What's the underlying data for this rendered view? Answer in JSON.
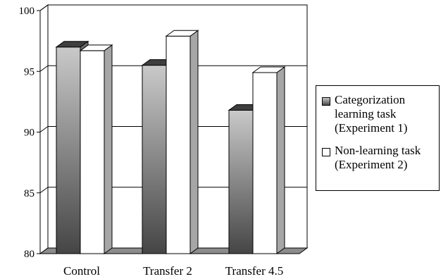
{
  "chart_data": {
    "type": "bar",
    "categories": [
      "Control",
      "Transfer 2",
      "Transfer 4.5"
    ],
    "series": [
      {
        "name": "Categorization learning task (Experiment 1)",
        "values": [
          97.0,
          95.5,
          91.8
        ]
      },
      {
        "name": "Non-learning task (Experiment 2)",
        "values": [
          96.7,
          97.9,
          94.9
        ]
      }
    ],
    "y_ticks": [
      "80",
      "85",
      "90",
      "95",
      "100"
    ],
    "ylim": [
      80,
      100
    ],
    "grid": true,
    "legend_position": "right",
    "style": "3d-bar",
    "colors": {
      "series1_light": "#c6c6c6",
      "series1_dark": "#4a4a4a",
      "series2": "#ffffff",
      "floor": "#8c8c8c"
    }
  },
  "legend": {
    "items": [
      {
        "lines": [
          "Categorization",
          "learning task",
          "(Experiment 1)"
        ]
      },
      {
        "lines": [
          "Non-learning task",
          "(Experiment 2)"
        ]
      }
    ]
  }
}
